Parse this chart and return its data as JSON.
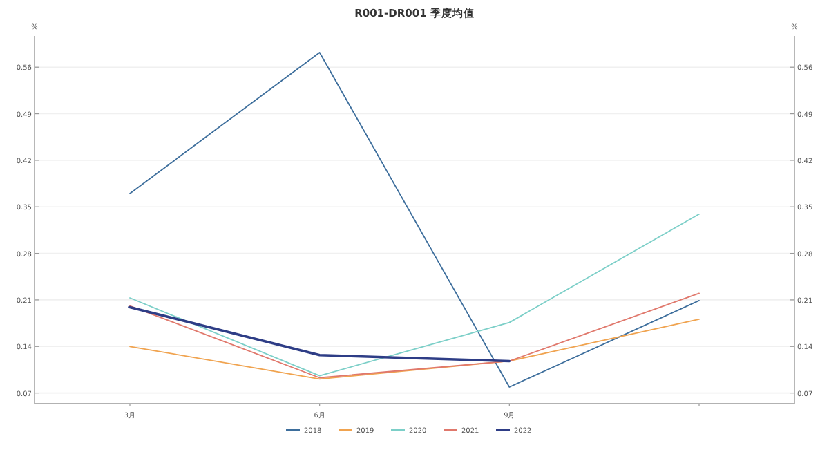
{
  "chart_data": {
    "type": "line",
    "title": "R001-DR001 季度均值",
    "ylabel": "%",
    "y2label": "%",
    "categories": [
      "3月",
      "6月",
      "9月",
      null
    ],
    "series": [
      {
        "name": "2018",
        "color": "#3d6e9c",
        "values": [
          0.37,
          0.582,
          0.079,
          0.209
        ]
      },
      {
        "name": "2019",
        "color": "#f0a34f",
        "values": [
          0.14,
          0.091,
          0.118,
          0.181
        ]
      },
      {
        "name": "2020",
        "color": "#7ccfc8",
        "values": [
          0.213,
          0.096,
          0.176,
          0.339
        ]
      },
      {
        "name": "2021",
        "color": "#e0786c",
        "values": [
          0.201,
          0.093,
          0.118,
          0.22
        ]
      },
      {
        "name": "2022",
        "color": "#2e3d86",
        "values": [
          0.199,
          0.127,
          0.118,
          null
        ]
      }
    ],
    "ylim": [
      0.054,
      0.607
    ],
    "yticks": [
      0.07,
      0.14,
      0.21,
      0.28,
      0.35,
      0.42,
      0.49,
      0.56
    ],
    "y2lim": [
      0.054,
      0.607
    ],
    "y2ticks": [
      0.07,
      0.14,
      0.21,
      0.28,
      0.35,
      0.42,
      0.49,
      0.56
    ],
    "grid": "y",
    "legend": "bottom",
    "marker": "none",
    "line_style": "solid"
  }
}
